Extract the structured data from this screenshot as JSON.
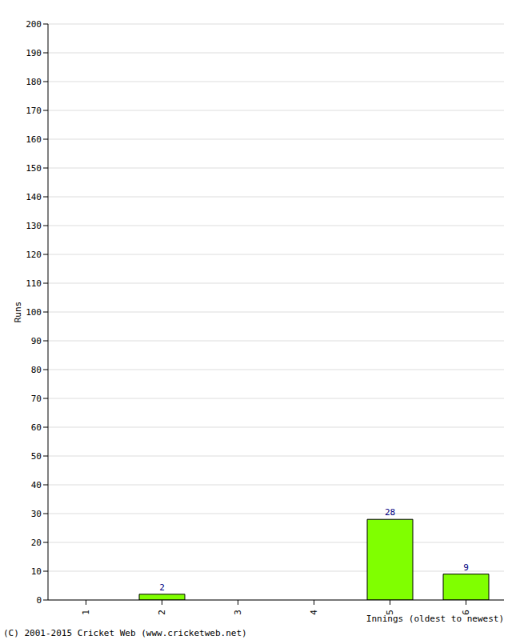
{
  "chart_data": {
    "type": "bar",
    "categories": [
      "1",
      "2",
      "3",
      "4",
      "5",
      "6"
    ],
    "values": [
      0,
      2,
      0,
      0,
      28,
      9
    ],
    "color": "#80ff00",
    "ylim": [
      0,
      200
    ],
    "yticks": [
      0,
      10,
      20,
      30,
      40,
      50,
      60,
      70,
      80,
      90,
      100,
      110,
      120,
      130,
      140,
      150,
      160,
      170,
      180,
      190,
      200
    ],
    "grid": true,
    "data_labels": true,
    "ylabel": "Runs",
    "xlabel": "Innings (oldest to newest)",
    "annotations": [
      "(C) 2001-2015 Cricket Web (www.cricketweb.net)"
    ]
  }
}
